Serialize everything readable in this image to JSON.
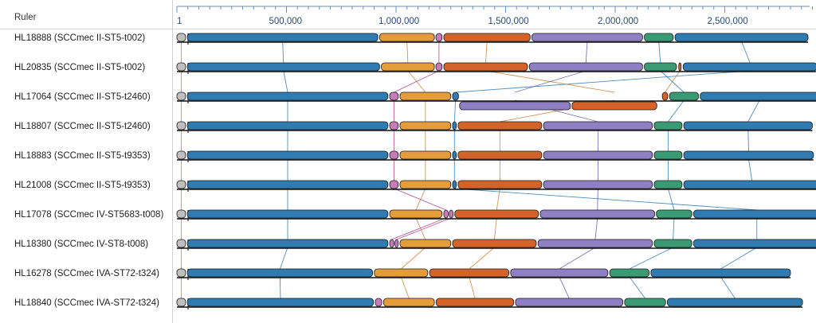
{
  "ruler": {
    "label": "Ruler",
    "ticks": [
      {
        "text": "1",
        "value": 1
      },
      {
        "text": "500,000",
        "value": 500000
      },
      {
        "text": "1,000,000",
        "value": 1000000
      },
      {
        "text": "1,500,000",
        "value": 1500000
      },
      {
        "text": "2,000,000",
        "value": 2000000
      },
      {
        "text": "2,500,000",
        "value": 2500000
      }
    ]
  },
  "colors": {
    "blue": "#2f7bb2",
    "orange": "#e59c3a",
    "pink": "#c77bb8",
    "red": "#d4632a",
    "purple": "#8f80c4",
    "green": "#3a9a73",
    "gray": "#bfbfbf",
    "link_teal": "#2f7bb2",
    "link_orange": "#c8823a",
    "link_magenta": "#b0418e",
    "link_purple": "#6a5bb0",
    "link_olive": "#a0a020"
  },
  "genomes": [
    {
      "name": "HL18888 (SCCmec II-ST5-t002)",
      "length": 2880000,
      "blocks": [
        [
          "gray",
          0,
          40000
        ],
        [
          "blue",
          48000,
          917000
        ],
        [
          "orange",
          925000,
          1175000
        ],
        [
          "pink",
          1182000,
          1210000
        ],
        [
          "red",
          1218000,
          1612000
        ],
        [
          "purple",
          1620000,
          2125000
        ],
        [
          "green",
          2133000,
          2265000
        ],
        [
          "blue",
          2273000,
          2880000
        ]
      ]
    },
    {
      "name": "HL20835 (SCCmec II-ST5-t002)",
      "length": 2920000,
      "blocks": [
        [
          "gray",
          0,
          40000
        ],
        [
          "blue",
          48000,
          925000
        ],
        [
          "orange",
          933000,
          1175000
        ],
        [
          "pink",
          1182000,
          1210000
        ],
        [
          "red",
          1218000,
          1600000
        ],
        [
          "purple",
          1608000,
          2125000
        ],
        [
          "green",
          2133000,
          2280000
        ],
        [
          "red",
          2290000,
          2300000
        ],
        [
          "blue",
          2310000,
          2920000
        ]
      ]
    },
    {
      "name": "HL17064 (SCCmec II-ST5-t2460)",
      "length": 2930000,
      "blocks": [
        [
          "gray",
          0,
          40000
        ],
        [
          "blue",
          48000,
          963000
        ],
        [
          "pink",
          971000,
          1010000
        ],
        [
          "orange",
          1018000,
          1250000
        ],
        [
          "blue",
          1258000,
          1285000
        ],
        [
          "red",
          2215000,
          2240000
        ],
        [
          "green",
          2248000,
          2380000
        ],
        [
          "blue",
          2388000,
          2930000
        ]
      ],
      "inverted": [
        [
          "purple",
          1290000,
          1795000
        ],
        [
          "red",
          1803000,
          2190000
        ]
      ]
    },
    {
      "name": "HL18807 (SCCmec II-ST5-t2460)",
      "length": 2900000,
      "blocks": [
        [
          "gray",
          0,
          40000
        ],
        [
          "blue",
          48000,
          963000
        ],
        [
          "pink",
          971000,
          1010000
        ],
        [
          "orange",
          1018000,
          1250000
        ],
        [
          "blue",
          1258000,
          1275000
        ],
        [
          "red",
          1283000,
          1665000
        ],
        [
          "purple",
          1673000,
          2170000
        ],
        [
          "green",
          2178000,
          2305000
        ],
        [
          "blue",
          2313000,
          2900000
        ]
      ]
    },
    {
      "name": "HL18883 (SCCmec II-ST5-t9353)",
      "length": 2905000,
      "blocks": [
        [
          "gray",
          0,
          40000
        ],
        [
          "blue",
          48000,
          963000
        ],
        [
          "pink",
          971000,
          1010000
        ],
        [
          "orange",
          1018000,
          1250000
        ],
        [
          "blue",
          1258000,
          1275000
        ],
        [
          "red",
          1283000,
          1665000
        ],
        [
          "purple",
          1673000,
          2170000
        ],
        [
          "green",
          2178000,
          2305000
        ],
        [
          "blue",
          2313000,
          2905000
        ]
      ]
    },
    {
      "name": "HL21008 (SCCmec II-ST5-t9353)",
      "length": 2935000,
      "blocks": [
        [
          "gray",
          0,
          40000
        ],
        [
          "blue",
          48000,
          963000
        ],
        [
          "pink",
          971000,
          1010000
        ],
        [
          "orange",
          1018000,
          1250000
        ],
        [
          "blue",
          1258000,
          1275000
        ],
        [
          "red",
          1283000,
          1665000
        ],
        [
          "purple",
          1673000,
          2170000
        ],
        [
          "green",
          2178000,
          2305000
        ],
        [
          "blue",
          2313000,
          2935000
        ]
      ]
    },
    {
      "name": "HL17078 (SCCmec IV-ST5683-t008)",
      "length": 2935000,
      "blocks": [
        [
          "gray",
          0,
          40000
        ],
        [
          "blue",
          48000,
          963000
        ],
        [
          "orange",
          971000,
          1210000
        ],
        [
          "pink",
          1218000,
          1238000
        ],
        [
          "pink",
          1243000,
          1260000
        ],
        [
          "red",
          1268000,
          1650000
        ],
        [
          "purple",
          1658000,
          2180000
        ],
        [
          "green",
          2188000,
          2350000
        ],
        [
          "blue",
          2358000,
          2935000
        ]
      ]
    },
    {
      "name": "HL18380 (SCCmec IV-ST8-t008)",
      "length": 2935000,
      "blocks": [
        [
          "gray",
          0,
          40000
        ],
        [
          "blue",
          48000,
          963000
        ],
        [
          "pink",
          971000,
          990000
        ],
        [
          "pink",
          995000,
          1010000
        ],
        [
          "orange",
          1018000,
          1250000
        ],
        [
          "red",
          1258000,
          1640000
        ],
        [
          "purple",
          1648000,
          2170000
        ],
        [
          "green",
          2178000,
          2350000
        ],
        [
          "blue",
          2358000,
          2935000
        ]
      ]
    },
    {
      "name": "HL16278 (SCCmec IVA-ST72-t324)",
      "length": 2800000,
      "blocks": [
        [
          "gray",
          0,
          40000
        ],
        [
          "blue",
          48000,
          893000
        ],
        [
          "orange",
          901000,
          1145000
        ],
        [
          "red",
          1153000,
          1515000
        ],
        [
          "purple",
          1523000,
          1967000
        ],
        [
          "green",
          1975000,
          2155000
        ],
        [
          "blue",
          2163000,
          2800000
        ]
      ]
    },
    {
      "name": "HL18840 (SCCmec IVA-ST72-t324)",
      "length": 2855000,
      "blocks": [
        [
          "gray",
          0,
          40000
        ],
        [
          "blue",
          48000,
          897000
        ],
        [
          "pink",
          905000,
          935000
        ],
        [
          "orange",
          943000,
          1175000
        ],
        [
          "red",
          1183000,
          1537000
        ],
        [
          "purple",
          1545000,
          2035000
        ],
        [
          "green",
          2043000,
          2230000
        ],
        [
          "blue",
          2238000,
          2855000
        ]
      ]
    }
  ]
}
